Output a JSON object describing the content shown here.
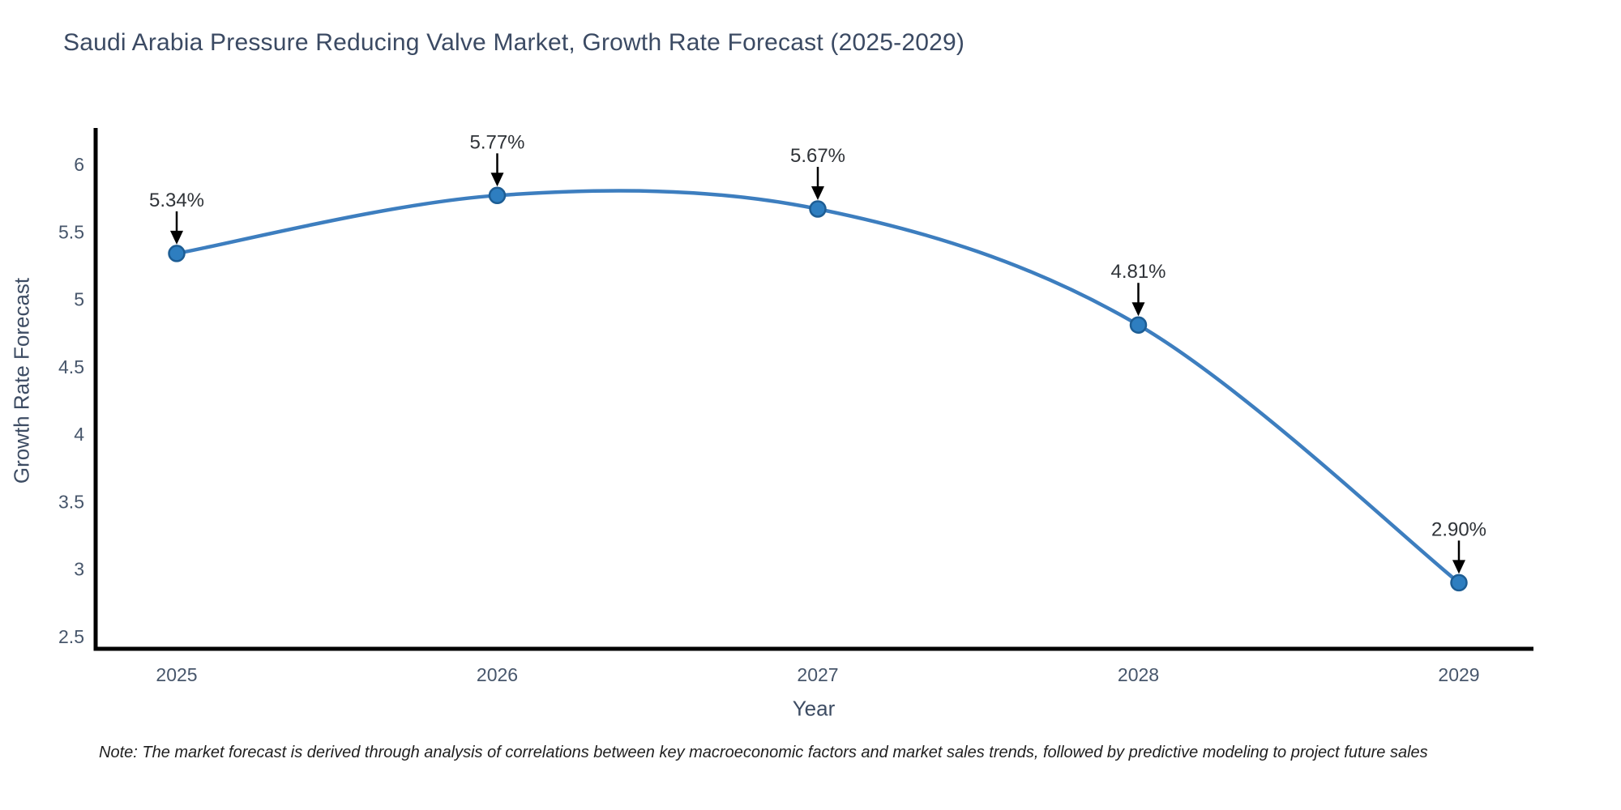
{
  "chart_data": {
    "type": "line",
    "line_shape": "spline",
    "title": "Saudi Arabia Pressure Reducing Valve Market, Growth Rate Forecast (2025-2029)",
    "xlabel": "Year",
    "ylabel": "Growth Rate Forecast",
    "categories": [
      "2025",
      "2026",
      "2027",
      "2028",
      "2029"
    ],
    "series": [
      {
        "name": "Growth Rate Forecast",
        "values": [
          5.34,
          5.77,
          5.67,
          4.81,
          2.9
        ]
      }
    ],
    "point_labels": [
      "5.34%",
      "5.77%",
      "5.67%",
      "4.81%",
      "2.90%"
    ],
    "yticks": [
      "2.5",
      "3",
      "3.5",
      "4",
      "4.5",
      "5",
      "5.5",
      "6"
    ],
    "ylim": [
      2.41,
      6.27
    ],
    "grid": false,
    "legend": false,
    "colors": {
      "line": "#3d7ebf",
      "marker_fill": "#2e7ec0",
      "marker_edge": "#1d5d94",
      "arrow": "#000000",
      "annotation_text": "#2f3338",
      "axis_line": "#000000",
      "tick_label": "#47566b",
      "axis_title": "#3d4c63",
      "title": "#3b4a63",
      "note_text": "#1f1f1f"
    }
  },
  "note": {
    "text": "Note: The market forecast is derived through analysis of correlations between key macroeconomic factors and market sales trends, followed by predictive modeling to project future sales"
  }
}
